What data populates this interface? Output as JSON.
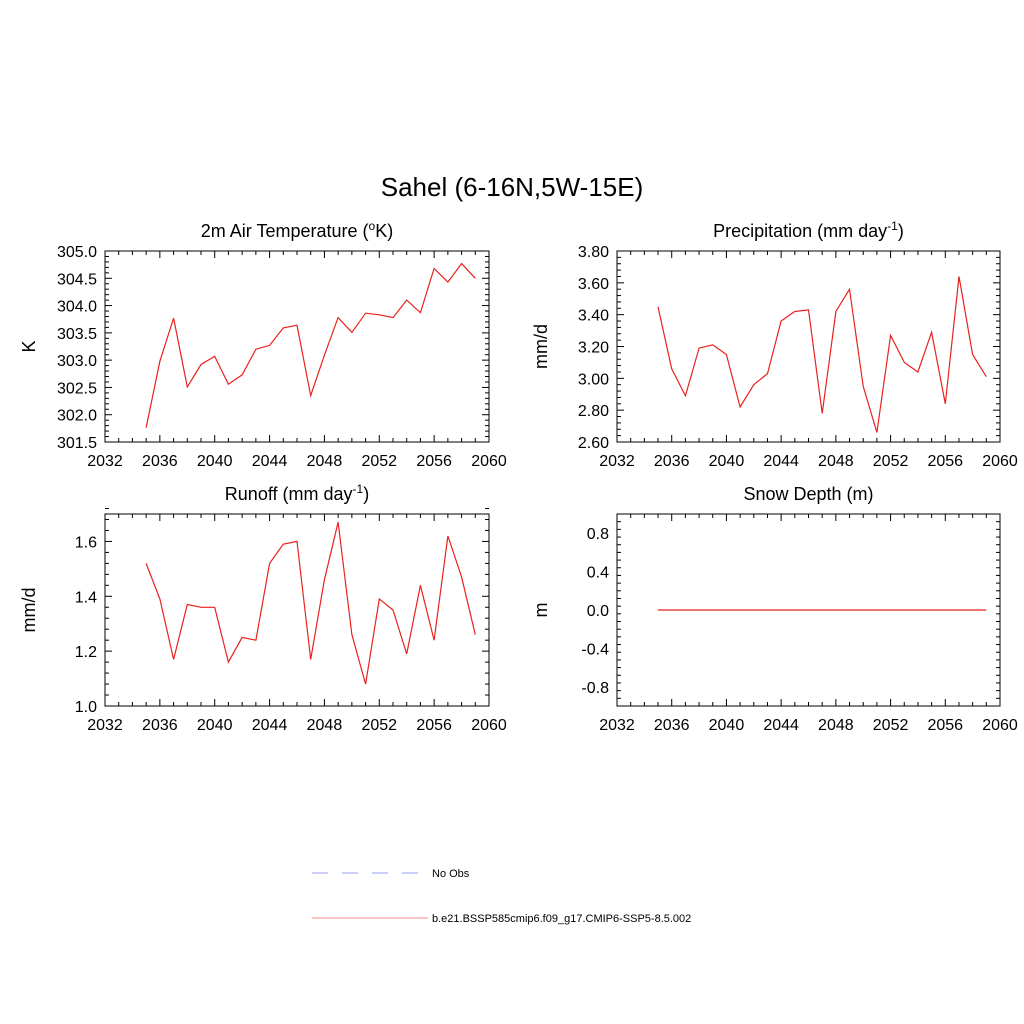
{
  "figure": {
    "title": "Sahel (6-16N,5W-15E)"
  },
  "chart_data": [
    {
      "type": "line",
      "title_base": "2m Air Temperature (",
      "title_sup": "o",
      "title_tail": "K)",
      "ylabel": "K",
      "xlim": [
        2032,
        2060
      ],
      "ylim": [
        301.5,
        305.0
      ],
      "xticks": [
        2032,
        2036,
        2040,
        2044,
        2048,
        2052,
        2056,
        2060
      ],
      "yticks": [
        "301.5",
        "302.0",
        "302.5",
        "303.0",
        "303.5",
        "304.0",
        "304.5",
        "305.0"
      ],
      "x": [
        2035,
        2036,
        2037,
        2038,
        2039,
        2040,
        2041,
        2042,
        2043,
        2044,
        2045,
        2046,
        2047,
        2048,
        2049,
        2050,
        2051,
        2052,
        2053,
        2054,
        2055,
        2056,
        2057,
        2058,
        2059
      ],
      "series": [
        {
          "values": [
            301.76,
            302.98,
            303.77,
            302.51,
            302.92,
            303.07,
            302.56,
            302.73,
            303.2,
            303.27,
            303.59,
            303.64,
            302.35,
            303.09,
            303.78,
            303.51,
            303.86,
            303.83,
            303.78,
            304.1,
            303.87,
            304.68,
            304.43,
            304.77,
            304.5
          ],
          "color": "#e8221e"
        }
      ]
    },
    {
      "type": "line",
      "title_base": "Precipitation (mm day",
      "title_sup": "-1",
      "title_tail": ")",
      "ylabel": "mm/d",
      "xlim": [
        2032,
        2060
      ],
      "ylim": [
        2.6,
        3.8
      ],
      "xticks": [
        2032,
        2036,
        2040,
        2044,
        2048,
        2052,
        2056,
        2060
      ],
      "yticks": [
        "2.60",
        "2.80",
        "3.00",
        "3.20",
        "3.40",
        "3.60",
        "3.80"
      ],
      "x": [
        2035,
        2036,
        2037,
        2038,
        2039,
        2040,
        2041,
        2042,
        2043,
        2044,
        2045,
        2046,
        2047,
        2048,
        2049,
        2050,
        2051,
        2052,
        2053,
        2054,
        2055,
        2056,
        2057,
        2058,
        2059
      ],
      "series": [
        {
          "values": [
            3.45,
            3.06,
            2.89,
            3.19,
            3.21,
            3.15,
            2.82,
            2.96,
            3.03,
            3.36,
            3.42,
            3.43,
            2.78,
            3.42,
            3.56,
            2.95,
            2.66,
            3.27,
            3.1,
            3.04,
            3.29,
            2.84,
            3.64,
            3.15,
            3.01
          ],
          "color": "#e8221e"
        }
      ]
    },
    {
      "type": "line",
      "title_base": "Runoff (mm day",
      "title_sup": "-1",
      "title_tail": ")",
      "ylabel": "mm/d",
      "xlim": [
        2032,
        2060
      ],
      "ylim": [
        1.0,
        1.7
      ],
      "xticks": [
        2032,
        2036,
        2040,
        2044,
        2048,
        2052,
        2056,
        2060
      ],
      "yticks": [
        "1.0",
        "1.2",
        "1.4",
        "1.6"
      ],
      "x": [
        2035,
        2036,
        2037,
        2038,
        2039,
        2040,
        2041,
        2042,
        2043,
        2044,
        2045,
        2046,
        2047,
        2048,
        2049,
        2050,
        2051,
        2052,
        2053,
        2054,
        2055,
        2056,
        2057,
        2058,
        2059
      ],
      "series": [
        {
          "values": [
            1.52,
            1.39,
            1.17,
            1.37,
            1.36,
            1.36,
            1.16,
            1.25,
            1.24,
            1.52,
            1.59,
            1.6,
            1.17,
            1.46,
            1.67,
            1.26,
            1.08,
            1.39,
            1.35,
            1.19,
            1.44,
            1.24,
            1.62,
            1.47,
            1.26
          ],
          "color": "#e8221e"
        }
      ]
    },
    {
      "type": "line",
      "title_base": "Snow Depth (m)",
      "title_sup": "",
      "title_tail": "",
      "ylabel": "m",
      "xlim": [
        2032,
        2060
      ],
      "ylim": [
        -1.0,
        1.0
      ],
      "xticks": [
        2032,
        2036,
        2040,
        2044,
        2048,
        2052,
        2056,
        2060
      ],
      "yticks": [
        "-0.8",
        "-0.4",
        "0.0",
        "0.4",
        "0.8"
      ],
      "x": [
        2035,
        2036,
        2037,
        2038,
        2039,
        2040,
        2041,
        2042,
        2043,
        2044,
        2045,
        2046,
        2047,
        2048,
        2049,
        2050,
        2051,
        2052,
        2053,
        2054,
        2055,
        2056,
        2057,
        2058,
        2059
      ],
      "series": [
        {
          "values": [
            0,
            0,
            0,
            0,
            0,
            0,
            0,
            0,
            0,
            0,
            0,
            0,
            0,
            0,
            0,
            0,
            0,
            0,
            0,
            0,
            0,
            0,
            0,
            0,
            0
          ],
          "color": "#e8221e"
        }
      ]
    }
  ],
  "legend": {
    "items": [
      {
        "label": "No Obs",
        "color": "#aab0f5",
        "dashed": true
      },
      {
        "label": "b.e21.BSSP585cmip6.f09_g17.CMIP6-SSP5-8.5.002",
        "color": "#f5a0a0",
        "dashed": false
      }
    ]
  }
}
